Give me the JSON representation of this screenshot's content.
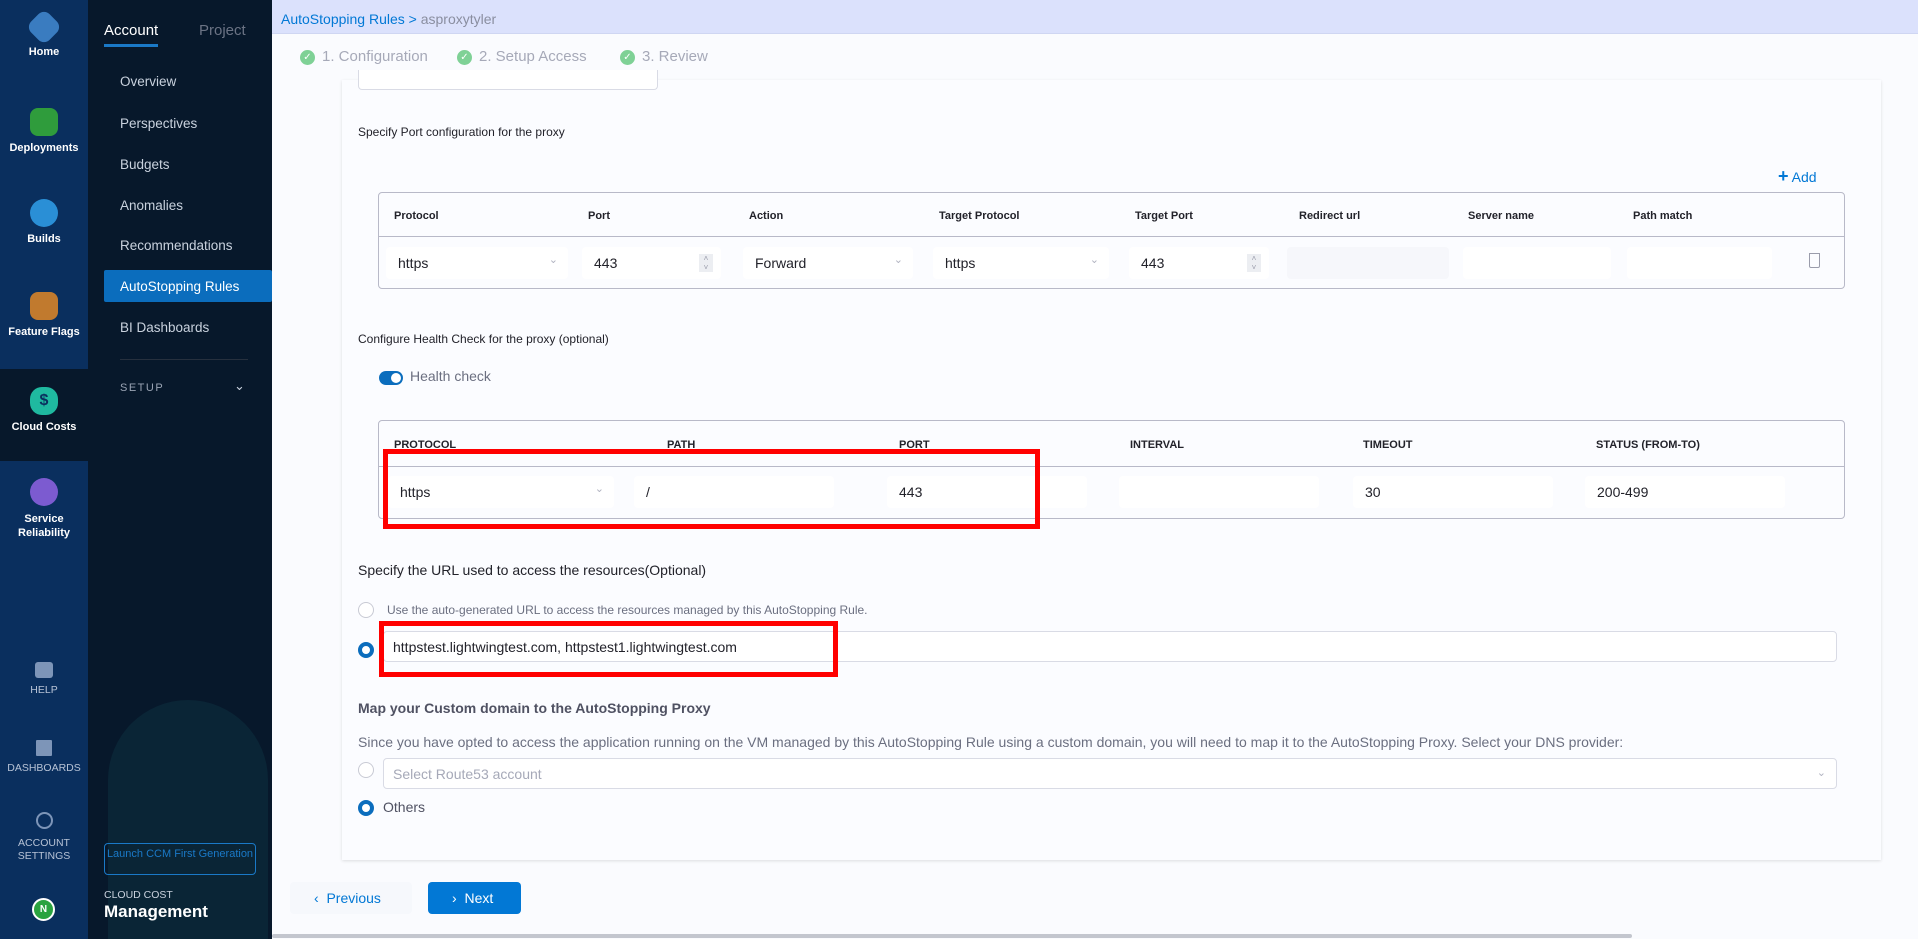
{
  "rail": {
    "items": [
      {
        "label": "Home",
        "icon": "home-icon"
      },
      {
        "label": "Deployments",
        "icon": "deployments-icon"
      },
      {
        "label": "Builds",
        "icon": "builds-icon"
      },
      {
        "label": "Feature Flags",
        "icon": "feature-flags-icon"
      },
      {
        "label": "Cloud Costs",
        "icon": "cloud-costs-icon",
        "selected": true
      },
      {
        "label": "Service Reliability",
        "icon": "service-reliability-icon"
      }
    ],
    "help": "HELP",
    "dashboards": "DASHBOARDS",
    "account_settings": "ACCOUNT SETTINGS",
    "avatar": "N"
  },
  "nav": {
    "tabs": [
      "Account",
      "Project"
    ],
    "items": [
      "Overview",
      "Perspectives",
      "Budgets",
      "Anomalies",
      "Recommendations",
      "AutoStopping Rules",
      "BI Dashboards"
    ],
    "selected": "AutoStopping Rules",
    "setup": "SETUP",
    "launch_button": "Launch CCM First Generation",
    "module_small": "CLOUD COST",
    "module_big": "Management"
  },
  "breadcrumb": {
    "link": "AutoStopping Rules",
    "separator": ">",
    "current": "asproxytyler"
  },
  "steps": [
    "1. Configuration",
    "2. Setup Access",
    "3. Review"
  ],
  "port": {
    "heading": "Specify Port configuration for the proxy",
    "add": "Add",
    "columns": [
      "Protocol",
      "Port",
      "Action",
      "Target Protocol",
      "Target Port",
      "Redirect url",
      "Server name",
      "Path match"
    ],
    "row": {
      "protocol": "https",
      "port": "443",
      "action": "Forward",
      "target_protocol": "https",
      "target_port": "443",
      "redirect_url": "",
      "server_name": "",
      "path_match": ""
    }
  },
  "health": {
    "heading": "Configure Health Check for the proxy (optional)",
    "toggle_label": "Health check",
    "enabled": true,
    "columns": [
      "PROTOCOL",
      "PATH",
      "PORT",
      "INTERVAL",
      "TIMEOUT",
      "STATUS (FROM-TO)"
    ],
    "row": {
      "protocol": "https",
      "path": "/",
      "port": "443",
      "interval": "",
      "timeout": "30",
      "status": "200-499"
    }
  },
  "url": {
    "heading": "Specify the URL used to access the resources(Optional)",
    "auto_option": "Use the auto-generated URL to access the resources managed by this AutoStopping Rule.",
    "custom_value": "httpstest.lightwingtest.com, httpstest1.lightwingtest.com"
  },
  "domain": {
    "heading": "Map your Custom domain to the AutoStopping Proxy",
    "description": "Since you have opted to access the application running on the VM managed by this AutoStopping Rule using a custom domain, you will need to map it to the AutoStopping Proxy. Select your DNS provider:",
    "route53_placeholder": "Select Route53 account",
    "others": "Others"
  },
  "footer": {
    "previous": "Previous",
    "next": "Next"
  },
  "colors": {
    "accent": "#0278d5",
    "highlight": "#ff0000",
    "rail": "#0a2f5e",
    "nav": "#07182b"
  }
}
